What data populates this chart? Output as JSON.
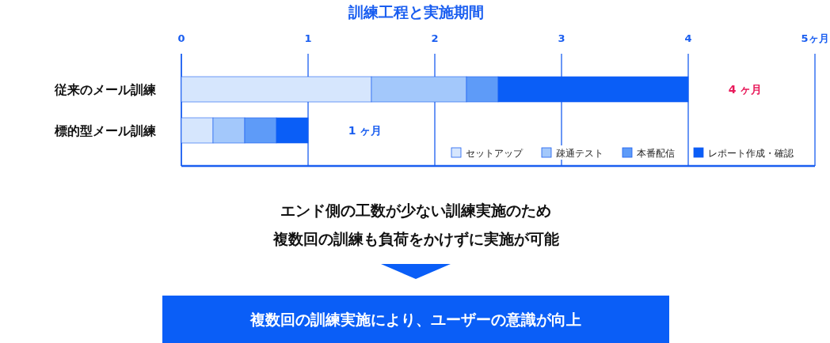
{
  "chart_data": {
    "type": "bar",
    "orientation": "horizontal",
    "stacked": true,
    "title": "訓練工程と実施期間",
    "categories": [
      "従来のメール訓練",
      "標的型メール訓練"
    ],
    "series": [
      {
        "name": "セットアップ",
        "color": "#d6e6fd",
        "values": [
          1.5,
          0.25
        ]
      },
      {
        "name": "疎通テスト",
        "color": "#a3c8fb",
        "values": [
          0.75,
          0.25
        ]
      },
      {
        "name": "本番配信",
        "color": "#5e9bf8",
        "values": [
          0.25,
          0.25
        ]
      },
      {
        "name": "レポート作成・確認",
        "color": "#0a5ef7",
        "values": [
          1.5,
          0.25
        ]
      }
    ],
    "xlim": [
      0,
      5
    ],
    "xticks": [
      0,
      1,
      2,
      3,
      4,
      {
        "value": 5,
        "label": "5ヶ月"
      }
    ],
    "grid": "x",
    "legend": "bottom right",
    "annotations": [
      "4 ヶ月",
      "1 ヶ月",
      "エンド側の工数が少ない訓練実施のため",
      "複数回の訓練も負荷をかけずに実施が可能",
      "複数回の訓練実施により、ユーザーの意識が向上"
    ]
  }
}
